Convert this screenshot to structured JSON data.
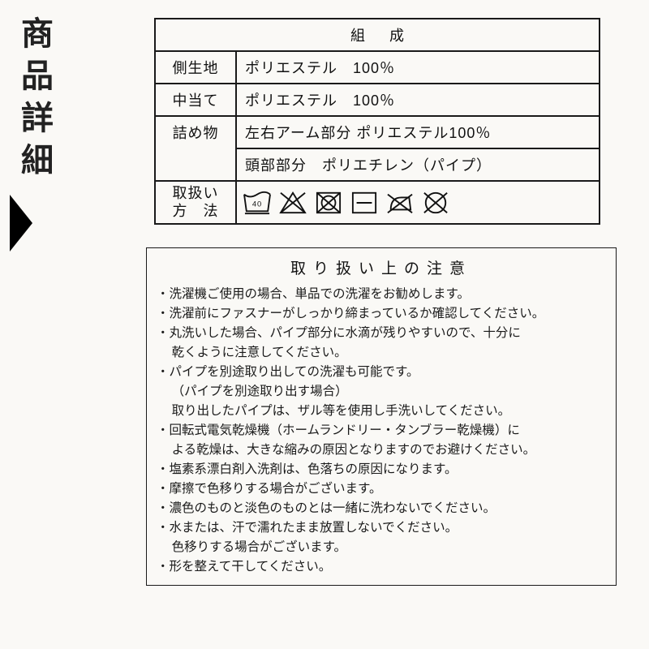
{
  "side_title": "商品詳細",
  "composition": {
    "header": "組成",
    "rows": [
      {
        "label": "側生地",
        "value": "ポリエステル　100％"
      },
      {
        "label": "中当て",
        "value": "ポリエステル　100％"
      }
    ],
    "filling_label": "詰め物",
    "filling_rows": [
      "左右アーム部分 ポリエステル100％",
      "頭部部分　ポリエチレン（パイプ）"
    ],
    "care_label_l1": "取扱い",
    "care_label_l2": "方　法",
    "care_icons": [
      "wash-40",
      "no-bleach",
      "no-tumble",
      "dry-flat",
      "no-iron",
      "no-dryclean"
    ]
  },
  "caution": {
    "title": "取り扱い上の注意",
    "lines": [
      {
        "t": "洗濯機ご使用の場合、単品での洗濯をお勧めします。",
        "k": "item"
      },
      {
        "t": "洗濯前にファスナーがしっかり締まっているか確認してください。",
        "k": "item"
      },
      {
        "t": "丸洗いした場合、パイプ部分に水滴が残りやすいので、十分に",
        "k": "item"
      },
      {
        "t": "乾くように注意してください。",
        "k": "sub"
      },
      {
        "t": "パイプを別途取り出しての洗濯も可能です。",
        "k": "item"
      },
      {
        "t": "（パイプを別途取り出す場合）",
        "k": "sub"
      },
      {
        "t": "取り出したパイプは、ザル等を使用し手洗いしてください。",
        "k": "sub"
      },
      {
        "t": "回転式電気乾燥機（ホームランドリー・タンブラー乾燥機）に",
        "k": "item"
      },
      {
        "t": "よる乾燥は、大きな縮みの原因となりますのでお避けください。",
        "k": "sub"
      },
      {
        "t": "塩素系漂白剤入洗剤は、色落ちの原因になります。",
        "k": "item"
      },
      {
        "t": "摩擦で色移りする場合がございます。",
        "k": "item"
      },
      {
        "t": "濃色のものと淡色のものとは一緒に洗わないでください。",
        "k": "item"
      },
      {
        "t": "水または、汗で濡れたまま放置しないでください。",
        "k": "item"
      },
      {
        "t": "色移りする場合がございます。",
        "k": "sub"
      },
      {
        "t": "形を整えて干してください。",
        "k": "item"
      }
    ]
  },
  "colors": {
    "fg": "#1a1a1a",
    "bg": "#faf9f6"
  }
}
